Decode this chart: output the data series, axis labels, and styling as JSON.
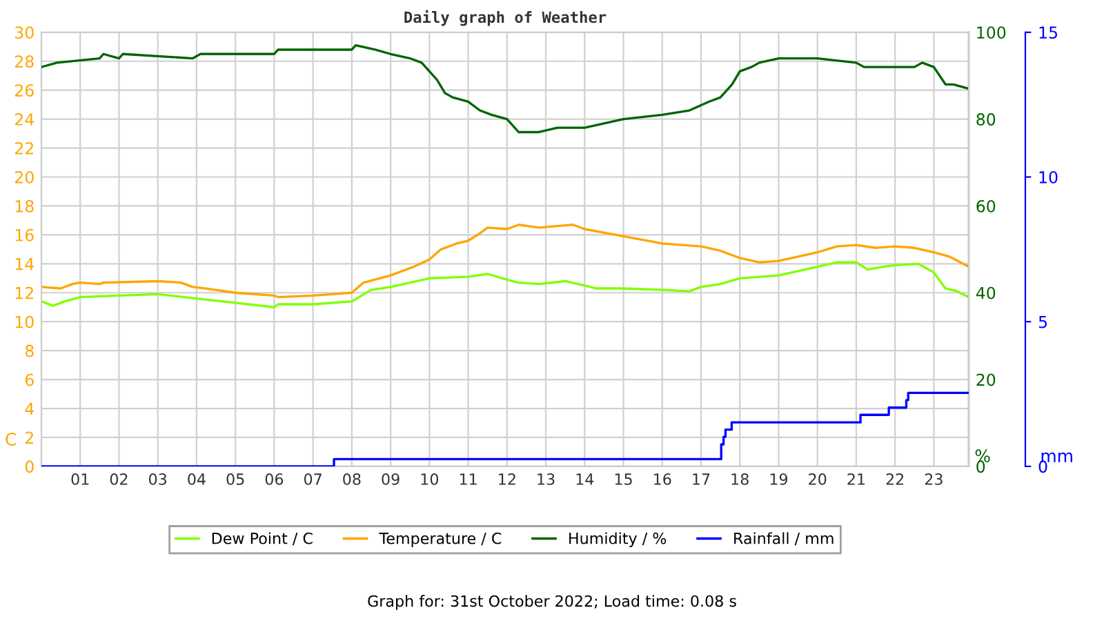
{
  "chart_data": {
    "type": "line",
    "title": "Daily graph of Weather",
    "ylabel": "C",
    "y2label": "%",
    "y3label": "mm",
    "annotations": [
      "Graph for: 31st October 2022; Load time: 0.08 s"
    ],
    "xlim": [
      0,
      23.9
    ],
    "xticks": [
      {
        "value": 1,
        "label": "01"
      },
      {
        "value": 2,
        "label": "02"
      },
      {
        "value": 3,
        "label": "03"
      },
      {
        "value": 4,
        "label": "04"
      },
      {
        "value": 5,
        "label": "05"
      },
      {
        "value": 6,
        "label": "06"
      },
      {
        "value": 7,
        "label": "07"
      },
      {
        "value": 8,
        "label": "08"
      },
      {
        "value": 9,
        "label": "09"
      },
      {
        "value": 10,
        "label": "10"
      },
      {
        "value": 11,
        "label": "11"
      },
      {
        "value": 12,
        "label": "12"
      },
      {
        "value": 13,
        "label": "13"
      },
      {
        "value": 14,
        "label": "14"
      },
      {
        "value": 15,
        "label": "15"
      },
      {
        "value": 16,
        "label": "16"
      },
      {
        "value": 17,
        "label": "17"
      },
      {
        "value": 18,
        "label": "18"
      },
      {
        "value": 19,
        "label": "19"
      },
      {
        "value": 20,
        "label": "20"
      },
      {
        "value": 21,
        "label": "21"
      },
      {
        "value": 22,
        "label": "22"
      },
      {
        "value": 23,
        "label": "23"
      }
    ],
    "ylim": [
      0,
      30
    ],
    "yticks": [
      0,
      2,
      4,
      6,
      8,
      10,
      12,
      14,
      16,
      18,
      20,
      22,
      24,
      26,
      28,
      30
    ],
    "y2lim": [
      0,
      100
    ],
    "y2ticks": [
      0,
      20,
      40,
      60,
      80,
      100
    ],
    "y3lim": [
      0,
      15
    ],
    "y3ticks": [
      0,
      5,
      10,
      15
    ],
    "grid": true,
    "legend": "bottom",
    "marker": "none",
    "line_style": "solid",
    "series": [
      {
        "name": "Dew Point / C",
        "color": "#80ff00",
        "x": [
          0,
          0.3,
          0.6,
          1,
          2,
          3,
          4,
          5,
          6,
          6.1,
          7,
          8,
          8.5,
          9,
          9.5,
          10,
          11,
          11.5,
          12,
          12.3,
          12.82,
          13.5,
          14,
          14.3,
          15,
          16,
          16.7,
          17,
          17.5,
          18,
          19,
          20,
          20.5,
          21,
          21.3,
          21.7,
          22,
          22.6,
          23,
          23.3,
          23.6,
          23.9
        ],
        "values": [
          11.4,
          11.1,
          11.4,
          11.7,
          11.8,
          11.9,
          11.6,
          11.3,
          11.0,
          11.2,
          11.2,
          11.4,
          12.2,
          12.4,
          12.7,
          13.0,
          13.1,
          13.3,
          12.9,
          12.7,
          12.6,
          12.8,
          12.5,
          12.3,
          12.3,
          12.2,
          12.1,
          12.4,
          12.6,
          13.0,
          13.2,
          13.8,
          14.1,
          14.1,
          13.6,
          13.8,
          13.9,
          14.0,
          13.4,
          12.3,
          12.1,
          11.7
        ]
      },
      {
        "name": "Temperature / C",
        "color": "#ffa500",
        "x": [
          0,
          0.5,
          0.8,
          1,
          1.5,
          1.6,
          3,
          3.6,
          3.9,
          4.2,
          5,
          6,
          6.1,
          7,
          7.5,
          8,
          8.3,
          9,
          9.6,
          10,
          10.3,
          10.7,
          11,
          11.3,
          11.5,
          12,
          12.3,
          12.82,
          13.7,
          14,
          15,
          16,
          17,
          17.5,
          18,
          18.5,
          19,
          20,
          20.5,
          21,
          21.5,
          22,
          22.5,
          23,
          23.4,
          23.9
        ],
        "values": [
          12.4,
          12.3,
          12.6,
          12.7,
          12.6,
          12.7,
          12.8,
          12.7,
          12.4,
          12.3,
          12.0,
          11.8,
          11.7,
          11.8,
          11.9,
          12.0,
          12.7,
          13.2,
          13.8,
          14.3,
          15.0,
          15.4,
          15.6,
          16.1,
          16.5,
          16.4,
          16.7,
          16.5,
          16.7,
          16.4,
          15.9,
          15.4,
          15.2,
          14.9,
          14.4,
          14.1,
          14.2,
          14.8,
          15.2,
          15.3,
          15.1,
          15.2,
          15.1,
          14.8,
          14.5,
          13.8
        ]
      },
      {
        "name": "Humidity / %",
        "color": "#006400",
        "axis": "y2",
        "x": [
          0,
          0.4,
          1.5,
          1.6,
          2,
          2.1,
          3.9,
          4.1,
          6,
          6.1,
          8,
          8.1,
          8.6,
          9,
          9.5,
          9.8,
          10,
          10.2,
          10.4,
          10.6,
          11,
          11.3,
          11.6,
          12,
          12.3,
          12.82,
          13.3,
          14,
          14.5,
          15,
          16,
          16.7,
          17.2,
          17.5,
          17.8,
          18,
          18.3,
          18.5,
          19,
          20,
          21,
          21.2,
          21.5,
          22.5,
          22.7,
          23,
          23.3,
          23.5,
          23.9
        ],
        "values": [
          92,
          93,
          94,
          95,
          94,
          95,
          94,
          95,
          95,
          96,
          96,
          97,
          96,
          95,
          94,
          93,
          91,
          89,
          86,
          85,
          84,
          82,
          81,
          80,
          77,
          77,
          78,
          78,
          79,
          80,
          81,
          82,
          84,
          85,
          88,
          91,
          92,
          93,
          94,
          94,
          93,
          92,
          92,
          92,
          93,
          92,
          88,
          88,
          87
        ]
      },
      {
        "name": "Rainfall / mm",
        "color": "#0000ff",
        "axis": "y3",
        "type": "step",
        "x": [
          0,
          7.54,
          17.52,
          17.58,
          17.63,
          17.79,
          21.11,
          21.84,
          22.29,
          22.34,
          23.9
        ],
        "values": [
          0,
          0.25,
          0.76,
          1.02,
          1.27,
          1.52,
          1.78,
          2.03,
          2.29,
          2.54,
          2.54
        ]
      }
    ]
  }
}
